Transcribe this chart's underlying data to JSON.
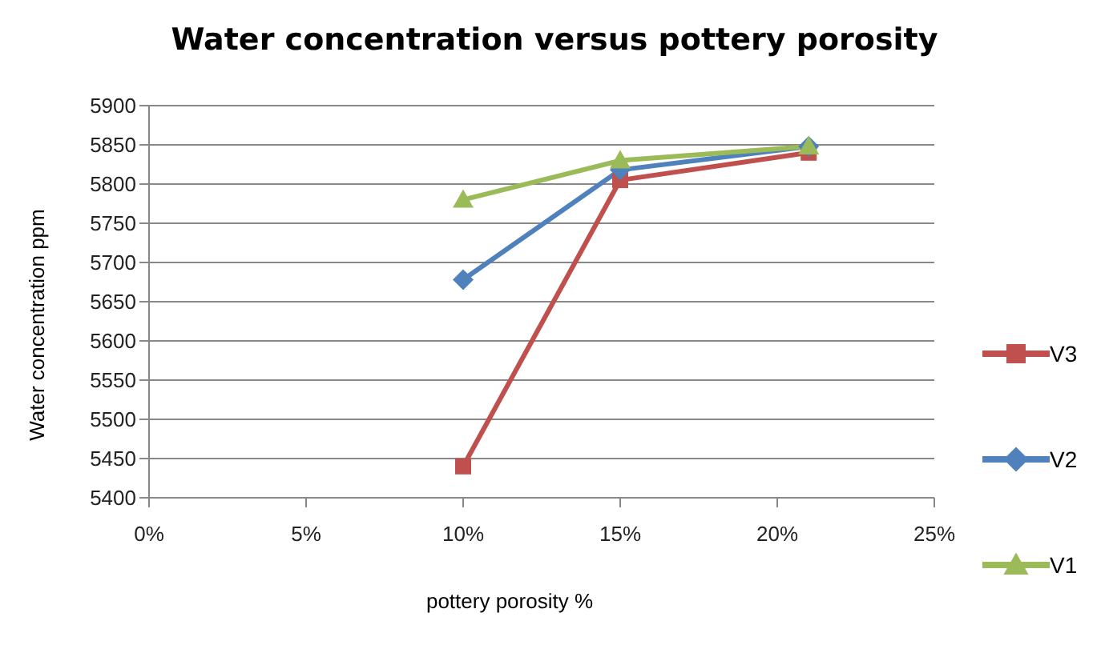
{
  "chart_data": {
    "type": "line",
    "title": "Water concentration versus pottery porosity",
    "xlabel": "pottery porosity %",
    "ylabel": "Water concentration ppm",
    "x": [
      10,
      15,
      21
    ],
    "series": [
      {
        "name": "V3",
        "color": "#c0504d",
        "marker": "square",
        "values": [
          5440,
          5805,
          5840
        ]
      },
      {
        "name": "V2",
        "color": "#4f81bd",
        "marker": "diamond",
        "values": [
          5678,
          5818,
          5848
        ]
      },
      {
        "name": "V1",
        "color": "#9bbb59",
        "marker": "triangle",
        "values": [
          5780,
          5830,
          5848
        ]
      }
    ],
    "xlim": [
      0,
      25
    ],
    "xticks": [
      {
        "value": 0,
        "label": "0%"
      },
      {
        "value": 5,
        "label": "5%"
      },
      {
        "value": 10,
        "label": "10%"
      },
      {
        "value": 15,
        "label": "15%"
      },
      {
        "value": 20,
        "label": "20%"
      },
      {
        "value": 25,
        "label": "25%"
      }
    ],
    "ylim": [
      5400,
      5900
    ],
    "yticks": [
      5400,
      5450,
      5500,
      5550,
      5600,
      5650,
      5700,
      5750,
      5800,
      5850,
      5900
    ],
    "grid": "y",
    "legend": "right"
  }
}
